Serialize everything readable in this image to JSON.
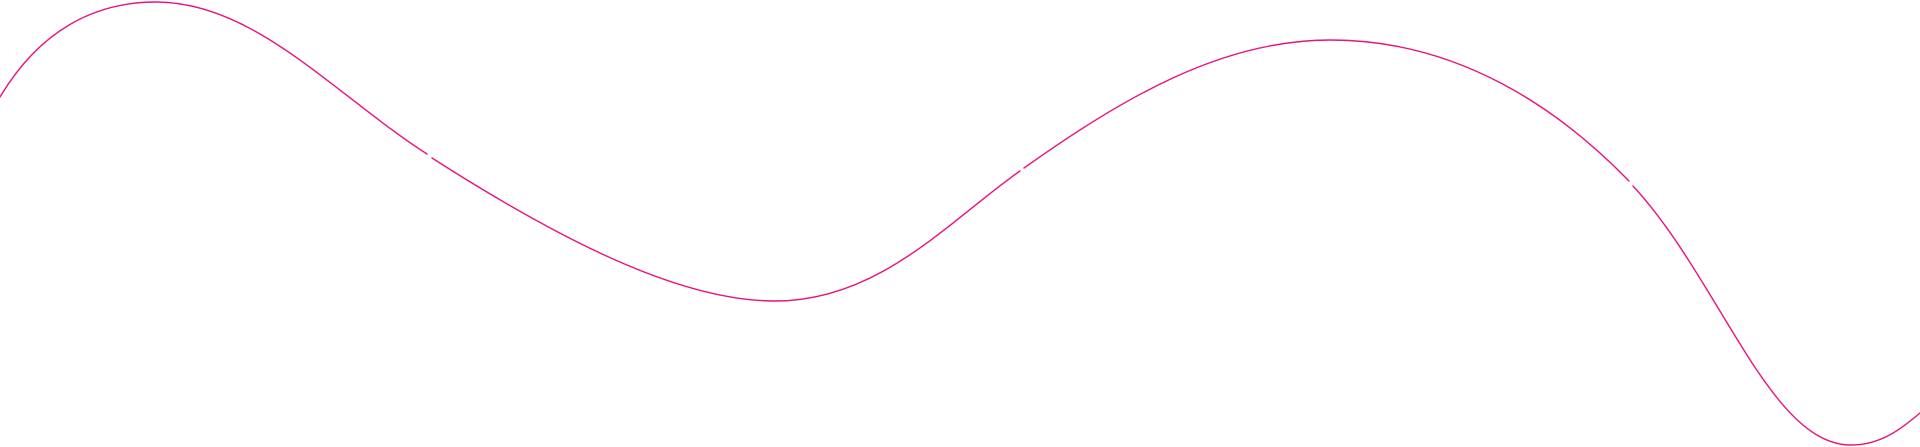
{
  "decoration": {
    "type": "wavy-line",
    "stroke_color": "#e8137f",
    "background_color": "#ffffff"
  }
}
